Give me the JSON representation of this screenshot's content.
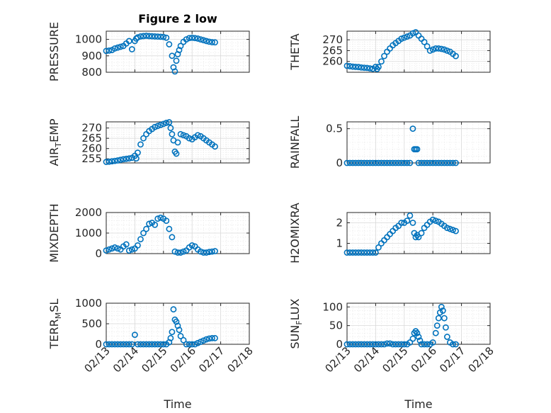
{
  "figure_title": "Figure 2 low",
  "marker_color": "#0072BD",
  "chart_data": [
    {
      "type": "scatter",
      "title": "Figure 2 low",
      "ylabel": "PRESSURE",
      "ylim": [
        800,
        1050
      ],
      "yticks": [
        800,
        900,
        1000
      ],
      "xlim": [
        0,
        5
      ],
      "xtick_labels": [
        "02/13",
        "02/14",
        "02/15",
        "02/16",
        "02/17",
        "02/18"
      ],
      "show_xtick_labels": false,
      "grid": true,
      "x": [
        0.0,
        0.1,
        0.2,
        0.3,
        0.4,
        0.5,
        0.6,
        0.7,
        0.8,
        0.9,
        1.0,
        1.05,
        1.1,
        1.2,
        1.3,
        1.4,
        1.5,
        1.6,
        1.7,
        1.8,
        1.9,
        2.0,
        2.1,
        2.2,
        2.3,
        2.35,
        2.4,
        2.45,
        2.5,
        2.55,
        2.6,
        2.7,
        2.8,
        2.9,
        3.0,
        3.1,
        3.2,
        3.3,
        3.4,
        3.5,
        3.6,
        3.7,
        3.8
      ],
      "y": [
        930,
        932,
        935,
        945,
        950,
        955,
        960,
        975,
        990,
        940,
        990,
        1005,
        1012,
        1018,
        1020,
        1022,
        1020,
        1019,
        1018,
        1017,
        1016,
        1015,
        1010,
        970,
        900,
        830,
        805,
        870,
        910,
        935,
        960,
        985,
        1000,
        1008,
        1010,
        1008,
        1005,
        1000,
        995,
        990,
        986,
        983,
        982
      ]
    },
    {
      "type": "scatter",
      "ylabel": "THETA",
      "ylim": [
        255,
        274
      ],
      "yticks": [
        260,
        265,
        270
      ],
      "xlim": [
        0,
        5
      ],
      "xtick_labels": [
        "02/13",
        "02/14",
        "02/15",
        "02/16",
        "02/17",
        "02/18"
      ],
      "show_xtick_labels": false,
      "grid": true,
      "x": [
        0.0,
        0.1,
        0.2,
        0.3,
        0.4,
        0.5,
        0.6,
        0.7,
        0.8,
        0.9,
        1.0,
        1.05,
        1.1,
        1.2,
        1.3,
        1.4,
        1.5,
        1.6,
        1.7,
        1.8,
        1.9,
        2.0,
        2.1,
        2.2,
        2.3,
        2.4,
        2.5,
        2.6,
        2.7,
        2.8,
        2.9,
        3.0,
        3.1,
        3.2,
        3.3,
        3.4,
        3.5,
        3.6,
        3.7,
        3.8
      ],
      "y": [
        258,
        257.8,
        257.6,
        257.5,
        257.4,
        257.2,
        257.1,
        257,
        256.8,
        256.6,
        257.5,
        256.5,
        257.5,
        260,
        262.5,
        264.5,
        266,
        267.5,
        268.5,
        269.5,
        270.5,
        271,
        271.5,
        272,
        273,
        273.5,
        272,
        270.5,
        269,
        267,
        265,
        265.5,
        266,
        266,
        265.8,
        265.5,
        265,
        264.5,
        263.5,
        262.5
      ]
    },
    {
      "type": "scatter",
      "ylabel": "AIR_TEMP",
      "ylim": [
        253,
        273
      ],
      "yticks": [
        255,
        260,
        265,
        270
      ],
      "xlim": [
        0,
        5
      ],
      "xtick_labels": [
        "02/13",
        "02/14",
        "02/15",
        "02/16",
        "02/17",
        "02/18"
      ],
      "show_xtick_labels": false,
      "grid": true,
      "x": [
        0.0,
        0.1,
        0.2,
        0.3,
        0.4,
        0.5,
        0.6,
        0.7,
        0.8,
        0.9,
        1.0,
        1.05,
        1.1,
        1.2,
        1.3,
        1.4,
        1.5,
        1.6,
        1.7,
        1.8,
        1.9,
        2.0,
        2.1,
        2.2,
        2.25,
        2.3,
        2.35,
        2.4,
        2.45,
        2.5,
        2.6,
        2.7,
        2.8,
        2.9,
        3.0,
        3.1,
        3.2,
        3.3,
        3.4,
        3.5,
        3.6,
        3.7,
        3.8
      ],
      "y": [
        253.5,
        253.6,
        253.8,
        254,
        254.2,
        254.5,
        254.8,
        255,
        255.2,
        255.5,
        256.5,
        255.2,
        258,
        262,
        265,
        267,
        268.5,
        269.5,
        270.5,
        271,
        271.5,
        272,
        272.5,
        272.8,
        270,
        267,
        264,
        258.5,
        257.5,
        263,
        267,
        266.5,
        266,
        265,
        264.5,
        265.5,
        266.5,
        266,
        265,
        264,
        263,
        262,
        261
      ]
    },
    {
      "type": "scatter",
      "ylabel": "RAINFALL",
      "ylim": [
        0,
        0.6
      ],
      "yticks": [
        0,
        0.5
      ],
      "xlim": [
        0,
        5
      ],
      "xtick_labels": [
        "02/13",
        "02/14",
        "02/15",
        "02/16",
        "02/17",
        "02/18"
      ],
      "show_xtick_labels": false,
      "grid": true,
      "x": [
        0.0,
        0.1,
        0.2,
        0.3,
        0.4,
        0.5,
        0.6,
        0.7,
        0.8,
        0.9,
        1.0,
        1.1,
        1.2,
        1.3,
        1.4,
        1.5,
        1.6,
        1.7,
        1.8,
        1.9,
        2.0,
        2.1,
        2.2,
        2.3,
        2.35,
        2.4,
        2.45,
        2.5,
        2.6,
        2.7,
        2.8,
        2.9,
        3.0,
        3.1,
        3.2,
        3.3,
        3.4,
        3.5,
        3.6,
        3.7,
        3.8
      ],
      "y": [
        0,
        0,
        0,
        0,
        0,
        0,
        0,
        0,
        0,
        0,
        0,
        0,
        0,
        0,
        0,
        0,
        0,
        0,
        0,
        0,
        0,
        0,
        0,
        0.5,
        0.2,
        0.2,
        0.2,
        0,
        0,
        0,
        0,
        0,
        0,
        0,
        0,
        0,
        0,
        0,
        0,
        0,
        0
      ]
    },
    {
      "type": "scatter",
      "ylabel": "MIXDEPTH",
      "ylim": [
        0,
        2000
      ],
      "yticks": [
        0,
        1000,
        2000
      ],
      "xlim": [
        0,
        5
      ],
      "xtick_labels": [
        "02/13",
        "02/14",
        "02/15",
        "02/16",
        "02/17",
        "02/18"
      ],
      "show_xtick_labels": false,
      "grid": true,
      "x": [
        0.0,
        0.1,
        0.2,
        0.3,
        0.4,
        0.5,
        0.6,
        0.7,
        0.8,
        0.9,
        1.0,
        1.1,
        1.2,
        1.3,
        1.4,
        1.5,
        1.6,
        1.7,
        1.8,
        1.9,
        2.0,
        2.1,
        2.2,
        2.3,
        2.4,
        2.5,
        2.6,
        2.7,
        2.8,
        2.9,
        3.0,
        3.1,
        3.2,
        3.3,
        3.4,
        3.5,
        3.6,
        3.7,
        3.8
      ],
      "y": [
        150,
        200,
        250,
        300,
        250,
        200,
        350,
        450,
        150,
        200,
        250,
        400,
        700,
        1000,
        1200,
        1450,
        1500,
        1400,
        1700,
        1750,
        1700,
        1600,
        1200,
        800,
        100,
        50,
        50,
        100,
        150,
        300,
        400,
        350,
        200,
        100,
        50,
        50,
        80,
        100,
        120
      ]
    },
    {
      "type": "scatter",
      "ylabel": "H2OMIXRA",
      "ylim": [
        0.5,
        2.5
      ],
      "yticks": [
        1,
        2
      ],
      "xlim": [
        0,
        5
      ],
      "xtick_labels": [
        "02/13",
        "02/14",
        "02/15",
        "02/16",
        "02/17",
        "02/18"
      ],
      "show_xtick_labels": false,
      "grid": true,
      "x": [
        0.0,
        0.1,
        0.2,
        0.3,
        0.4,
        0.5,
        0.6,
        0.7,
        0.8,
        0.9,
        1.0,
        1.1,
        1.2,
        1.3,
        1.4,
        1.5,
        1.6,
        1.7,
        1.8,
        1.9,
        2.0,
        2.1,
        2.2,
        2.3,
        2.35,
        2.4,
        2.45,
        2.5,
        2.6,
        2.7,
        2.8,
        2.9,
        3.0,
        3.1,
        3.2,
        3.3,
        3.4,
        3.5,
        3.6,
        3.7,
        3.8
      ],
      "y": [
        0.55,
        0.55,
        0.55,
        0.55,
        0.55,
        0.55,
        0.55,
        0.55,
        0.55,
        0.55,
        0.55,
        0.8,
        1.0,
        1.15,
        1.3,
        1.45,
        1.6,
        1.75,
        1.85,
        2.0,
        2.0,
        2.1,
        2.35,
        2.0,
        1.5,
        1.3,
        1.4,
        1.3,
        1.5,
        1.75,
        1.9,
        2.05,
        2.15,
        2.1,
        2.05,
        1.95,
        1.85,
        1.75,
        1.7,
        1.65,
        1.6
      ]
    },
    {
      "type": "scatter",
      "ylabel": "TERR_MSL",
      "ylim": [
        0,
        1000
      ],
      "yticks": [
        0,
        500,
        1000
      ],
      "xlim": [
        0,
        5
      ],
      "xtick_labels": [
        "02/13",
        "02/14",
        "02/15",
        "02/16",
        "02/17",
        "02/18"
      ],
      "show_xtick_labels": true,
      "xlabel": "Time",
      "grid": true,
      "x": [
        0.0,
        0.1,
        0.2,
        0.3,
        0.4,
        0.5,
        0.6,
        0.7,
        0.8,
        0.9,
        1.0,
        1.1,
        1.2,
        1.3,
        1.4,
        1.5,
        1.6,
        1.7,
        1.8,
        1.9,
        2.0,
        2.1,
        2.2,
        2.25,
        2.3,
        2.35,
        2.4,
        2.45,
        2.5,
        2.55,
        2.6,
        2.7,
        2.8,
        2.9,
        3.0,
        3.1,
        3.2,
        3.3,
        3.4,
        3.5,
        3.6,
        3.7,
        3.8
      ],
      "y": [
        0,
        0,
        0,
        0,
        0,
        0,
        0,
        0,
        0,
        0,
        230,
        0,
        0,
        0,
        0,
        0,
        0,
        0,
        0,
        0,
        0,
        0,
        50,
        150,
        300,
        850,
        600,
        550,
        450,
        350,
        200,
        100,
        0,
        0,
        0,
        0,
        30,
        60,
        90,
        120,
        140,
        150,
        150
      ]
    },
    {
      "type": "scatter",
      "ylabel": "SUN_FLUX",
      "ylim": [
        0,
        110
      ],
      "yticks": [
        0,
        50,
        100
      ],
      "xlim": [
        0,
        5
      ],
      "xtick_labels": [
        "02/13",
        "02/14",
        "02/15",
        "02/16",
        "02/17",
        "02/18"
      ],
      "show_xtick_labels": true,
      "xlabel": "Time",
      "grid": true,
      "x": [
        0.0,
        0.1,
        0.2,
        0.3,
        0.4,
        0.5,
        0.6,
        0.7,
        0.8,
        0.9,
        1.0,
        1.1,
        1.2,
        1.3,
        1.4,
        1.5,
        1.6,
        1.7,
        1.8,
        1.9,
        2.0,
        2.1,
        2.2,
        2.3,
        2.35,
        2.4,
        2.45,
        2.5,
        2.55,
        2.6,
        2.7,
        2.8,
        2.9,
        3.0,
        3.1,
        3.15,
        3.2,
        3.25,
        3.3,
        3.35,
        3.4,
        3.45,
        3.5,
        3.6,
        3.7,
        3.8
      ],
      "y": [
        0,
        0,
        0,
        0,
        0,
        0,
        0,
        0,
        0,
        0,
        0,
        0,
        0,
        0,
        2,
        2,
        0,
        0,
        0,
        0,
        0,
        0,
        5,
        15,
        30,
        35,
        30,
        20,
        10,
        0,
        0,
        0,
        0,
        5,
        30,
        50,
        70,
        85,
        100,
        90,
        70,
        45,
        20,
        5,
        0,
        0
      ]
    }
  ]
}
